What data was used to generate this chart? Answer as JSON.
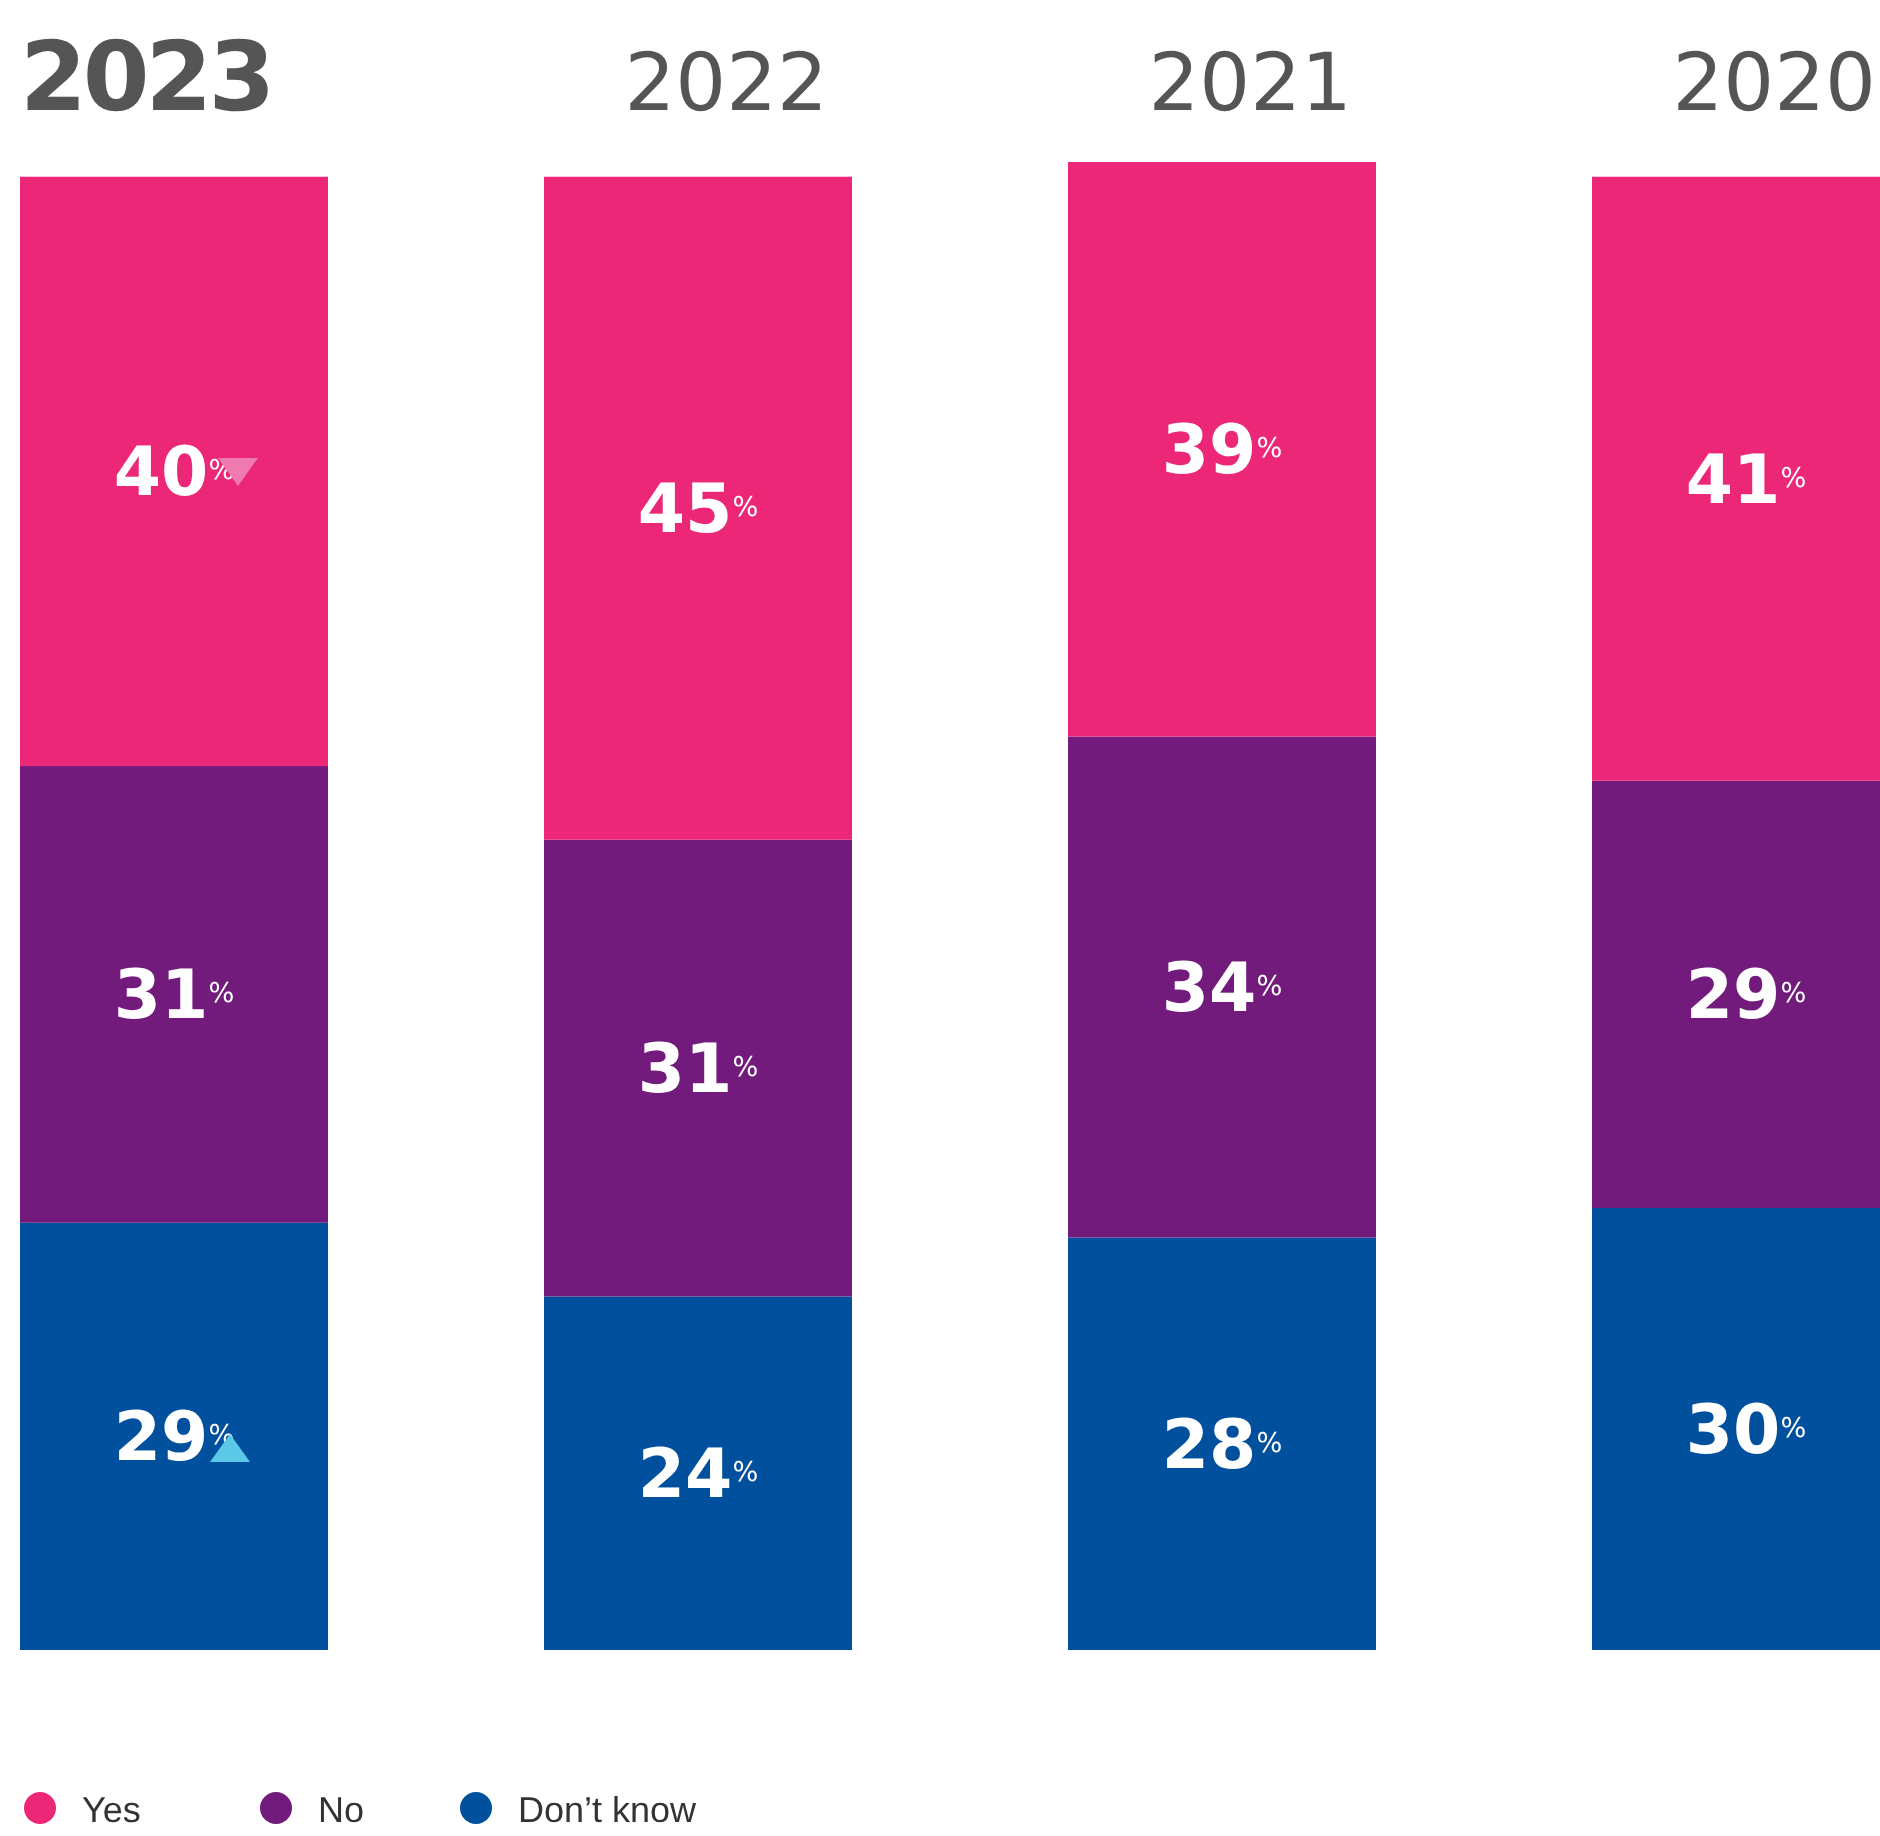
{
  "chart_data": {
    "type": "bar",
    "stacked": true,
    "categories": [
      "2023",
      "2022",
      "2021",
      "2020"
    ],
    "series": [
      {
        "name": "Don’t know",
        "color": "#00509e",
        "values": [
          29,
          24,
          28,
          30
        ],
        "value_labels": [
          "29$^{%}$",
          "24$^{%}$",
          "28$^{%}$",
          "30$^{%}$"
        ]
      },
      {
        "name": "No",
        "color": "#721b7c",
        "values": [
          31,
          31,
          34,
          29
        ],
        "value_labels": [
          "31$^{%}$",
          "31$^{%}$",
          "34$^{%}$",
          "29$^{%}$"
        ]
      },
      {
        "name": "Yes",
        "color": "#ec2778",
        "values": [
          40,
          45,
          39,
          41
        ],
        "value_labels": [
          "40$^{%}$",
          "45$^{%}$",
          "39$^{%}$",
          "41$^{%}$"
        ]
      }
    ],
    "legend": "bottom left"
  }
}
